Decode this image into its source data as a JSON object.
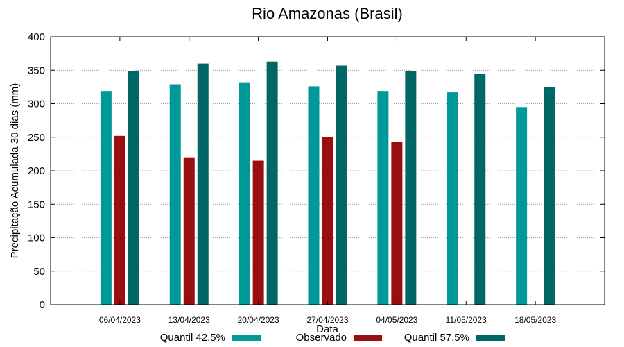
{
  "chart_data": {
    "type": "bar",
    "title": "Rio Amazonas (Brasil)",
    "xlabel": "Data",
    "ylabel": "Precipitação Acumulada 30 dias (mm)",
    "ylim": [
      0,
      400
    ],
    "yticks": [
      0,
      50,
      100,
      150,
      200,
      250,
      300,
      350,
      400
    ],
    "grid": true,
    "legend_position": "bottom",
    "categories": [
      "06/04/2023",
      "13/04/2023",
      "20/04/2023",
      "27/04/2023",
      "04/05/2023",
      "11/05/2023",
      "18/05/2023"
    ],
    "series": [
      {
        "name": "Quantil 42.5%",
        "color": "#009999",
        "values": [
          319,
          329,
          332,
          326,
          319,
          317,
          295
        ]
      },
      {
        "name": "Observado",
        "color": "#990f0f",
        "values": [
          252,
          220,
          215,
          250,
          243,
          null,
          null
        ]
      },
      {
        "name": "Quantil 57.5%",
        "color": "#006666",
        "values": [
          349,
          360,
          363,
          357,
          349,
          345,
          325
        ]
      }
    ]
  }
}
